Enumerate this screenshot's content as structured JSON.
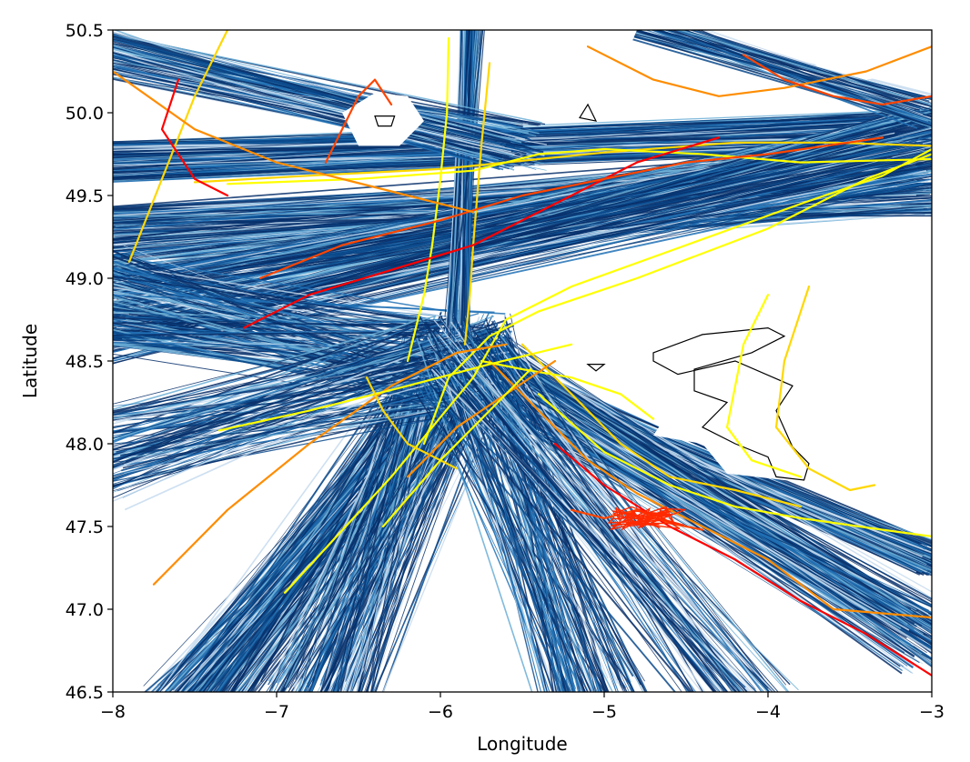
{
  "chart_data": {
    "type": "line",
    "title": "",
    "xlabel": "Longitude",
    "ylabel": "Latitude",
    "xlim": [
      -8,
      -3
    ],
    "ylim": [
      46.5,
      50.5
    ],
    "grid": false,
    "legend": "none",
    "x_ticks": [
      -8,
      -7,
      -6,
      -5,
      -4,
      -3
    ],
    "x_tick_labels": [
      "−8",
      "−7",
      "−6",
      "−5",
      "−4",
      "−3"
    ],
    "y_ticks": [
      46.5,
      47.0,
      47.5,
      48.0,
      48.5,
      49.0,
      49.5,
      50.0,
      50.5
    ],
    "y_tick_labels": [
      "46.5",
      "47.0",
      "47.5",
      "48.0",
      "48.5",
      "49.0",
      "49.5",
      "50.0",
      "50.5"
    ],
    "colors": {
      "background_tracks": [
        "#08306b",
        "#0b4a8c",
        "#2171b5",
        "#6baed6",
        "#c6dbef"
      ],
      "highlight_tracks": [
        "#ff0000",
        "#ff4500",
        "#ff8c00",
        "#ffd700",
        "#ffff00"
      ],
      "coastline": "#000000"
    },
    "series": [
      {
        "color": "#ffff00",
        "x": [
          -6.95,
          -6.3,
          -5.8,
          -5.6,
          -5.2,
          -4.5,
          -3.8,
          -3.3,
          -3.0
        ],
        "y": [
          47.1,
          47.8,
          48.4,
          48.75,
          48.95,
          49.2,
          49.45,
          49.62,
          49.78
        ]
      },
      {
        "color": "#ffff00",
        "x": [
          -6.1,
          -5.95,
          -5.7,
          -5.4,
          -4.8,
          -4.0,
          -3.4,
          -3.0
        ],
        "y": [
          48.0,
          48.4,
          48.65,
          48.8,
          49.0,
          49.3,
          49.6,
          49.75
        ]
      },
      {
        "color": "#ffd700",
        "x": [
          -7.5,
          -6.8,
          -6.0,
          -5.0,
          -4.2,
          -3.6,
          -3.0
        ],
        "y": [
          49.58,
          49.62,
          49.66,
          49.76,
          49.82,
          49.82,
          49.8
        ]
      },
      {
        "color": "#ffff00",
        "x": [
          -7.3,
          -6.5,
          -5.8,
          -5.4,
          -5.0,
          -4.4,
          -3.8,
          -3.0
        ],
        "y": [
          49.57,
          49.6,
          49.65,
          49.75,
          49.78,
          49.75,
          49.7,
          49.72
        ]
      },
      {
        "color": "#ffff00",
        "x": [
          -5.95,
          -5.96,
          -6.0,
          -6.05,
          -6.1,
          -6.15,
          -6.2
        ],
        "y": [
          50.45,
          50.0,
          49.6,
          49.2,
          48.9,
          48.7,
          48.5
        ]
      },
      {
        "color": "#ffd700",
        "x": [
          -5.7,
          -5.75,
          -5.8,
          -5.82,
          -5.85
        ],
        "y": [
          50.3,
          49.8,
          49.2,
          48.9,
          48.6
        ]
      },
      {
        "color": "#ff0000",
        "x": [
          -7.2,
          -6.8,
          -6.3,
          -5.8,
          -5.3,
          -4.8,
          -4.3
        ],
        "y": [
          48.7,
          48.9,
          49.05,
          49.2,
          49.45,
          49.7,
          49.85
        ]
      },
      {
        "color": "#ff4500",
        "x": [
          -7.1,
          -6.6,
          -6.0,
          -5.5,
          -5.0,
          -4.5,
          -4.0,
          -3.3
        ],
        "y": [
          49.0,
          49.2,
          49.35,
          49.5,
          49.6,
          49.7,
          49.75,
          49.85
        ]
      },
      {
        "color": "#ff8c00",
        "x": [
          -7.75,
          -7.3,
          -6.8,
          -6.3,
          -5.9,
          -5.6
        ],
        "y": [
          47.15,
          47.6,
          48.0,
          48.35,
          48.55,
          48.6
        ]
      },
      {
        "color": "#ffd700",
        "x": [
          -7.9,
          -7.7,
          -7.5,
          -7.3
        ],
        "y": [
          49.1,
          49.6,
          50.1,
          50.5
        ]
      },
      {
        "color": "#ff8c00",
        "x": [
          -8.0,
          -7.5,
          -7.0,
          -6.6,
          -6.2,
          -5.8
        ],
        "y": [
          50.25,
          49.9,
          49.7,
          49.6,
          49.5,
          49.4
        ]
      },
      {
        "color": "#ff0000",
        "x": [
          -7.6,
          -7.7,
          -7.5,
          -7.3
        ],
        "y": [
          50.2,
          49.9,
          49.6,
          49.5
        ]
      },
      {
        "color": "#ffff00",
        "x": [
          -7.35,
          -6.8,
          -6.2,
          -5.7,
          -5.2
        ],
        "y": [
          48.08,
          48.2,
          48.35,
          48.48,
          48.6
        ]
      },
      {
        "color": "#ffd700",
        "x": [
          -5.5,
          -5.2,
          -4.9,
          -4.6,
          -4.2,
          -3.8
        ],
        "y": [
          48.6,
          48.3,
          48.0,
          47.8,
          47.72,
          47.62
        ]
      },
      {
        "color": "#ffff00",
        "x": [
          -5.4,
          -5.0,
          -4.6,
          -4.2,
          -3.8,
          -3.3,
          -3.0
        ],
        "y": [
          48.3,
          47.95,
          47.75,
          47.62,
          47.55,
          47.48,
          47.44
        ]
      },
      {
        "color": "#ff8c00",
        "x": [
          -5.7,
          -5.4,
          -5.1,
          -4.8,
          -4.4,
          -4.0,
          -3.6,
          -3.0
        ],
        "y": [
          48.5,
          48.2,
          47.9,
          47.7,
          47.5,
          47.3,
          47.0,
          46.95
        ]
      },
      {
        "color": "#ff0000",
        "x": [
          -5.3,
          -5.0,
          -4.6,
          -4.2,
          -3.8,
          -3.4,
          -3.0
        ],
        "y": [
          48.0,
          47.75,
          47.5,
          47.3,
          47.05,
          46.85,
          46.6
        ]
      },
      {
        "color": "#ff4500",
        "x": [
          -5.2,
          -5.0,
          -4.8,
          -4.6,
          -4.4
        ],
        "y": [
          47.6,
          47.55,
          47.6,
          47.52,
          47.48
        ]
      },
      {
        "color": "#ffd700",
        "x": [
          -3.75,
          -3.9,
          -3.95,
          -3.75,
          -3.5,
          -3.35
        ],
        "y": [
          48.95,
          48.5,
          48.1,
          47.85,
          47.72,
          47.75
        ]
      },
      {
        "color": "#ffff00",
        "x": [
          -4.0,
          -4.15,
          -4.25,
          -4.1,
          -3.8
        ],
        "y": [
          48.9,
          48.6,
          48.1,
          47.9,
          47.8
        ]
      },
      {
        "color": "#ff8c00",
        "x": [
          -5.1,
          -4.7,
          -4.3,
          -3.9,
          -3.4,
          -3.0
        ],
        "y": [
          50.4,
          50.2,
          50.1,
          50.15,
          50.25,
          50.4
        ]
      },
      {
        "color": "#ff4500",
        "x": [
          -4.15,
          -3.9,
          -3.6,
          -3.3,
          -3.0
        ],
        "y": [
          50.35,
          50.2,
          50.1,
          50.05,
          50.1
        ]
      },
      {
        "color": "#ff4500",
        "x": [
          -6.7,
          -6.6,
          -6.5,
          -6.4,
          -6.3
        ],
        "y": [
          49.7,
          49.9,
          50.1,
          50.2,
          50.05
        ]
      },
      {
        "color": "#ffff00",
        "x": [
          -4.7,
          -4.9,
          -5.2,
          -5.5,
          -5.75
        ],
        "y": [
          48.15,
          48.3,
          48.4,
          48.45,
          48.5
        ]
      },
      {
        "color": "#ffd700",
        "x": [
          -6.45,
          -6.35,
          -6.2,
          -6.0,
          -5.9
        ],
        "y": [
          48.4,
          48.2,
          48.0,
          47.9,
          47.85
        ]
      },
      {
        "color": "#ff8c00",
        "x": [
          -6.2,
          -5.9,
          -5.6,
          -5.3
        ],
        "y": [
          47.8,
          48.1,
          48.3,
          48.5
        ]
      },
      {
        "color": "#ffff00",
        "x": [
          -6.35,
          -6.0,
          -5.7,
          -5.45
        ],
        "y": [
          47.5,
          47.9,
          48.2,
          48.45
        ]
      }
    ]
  }
}
